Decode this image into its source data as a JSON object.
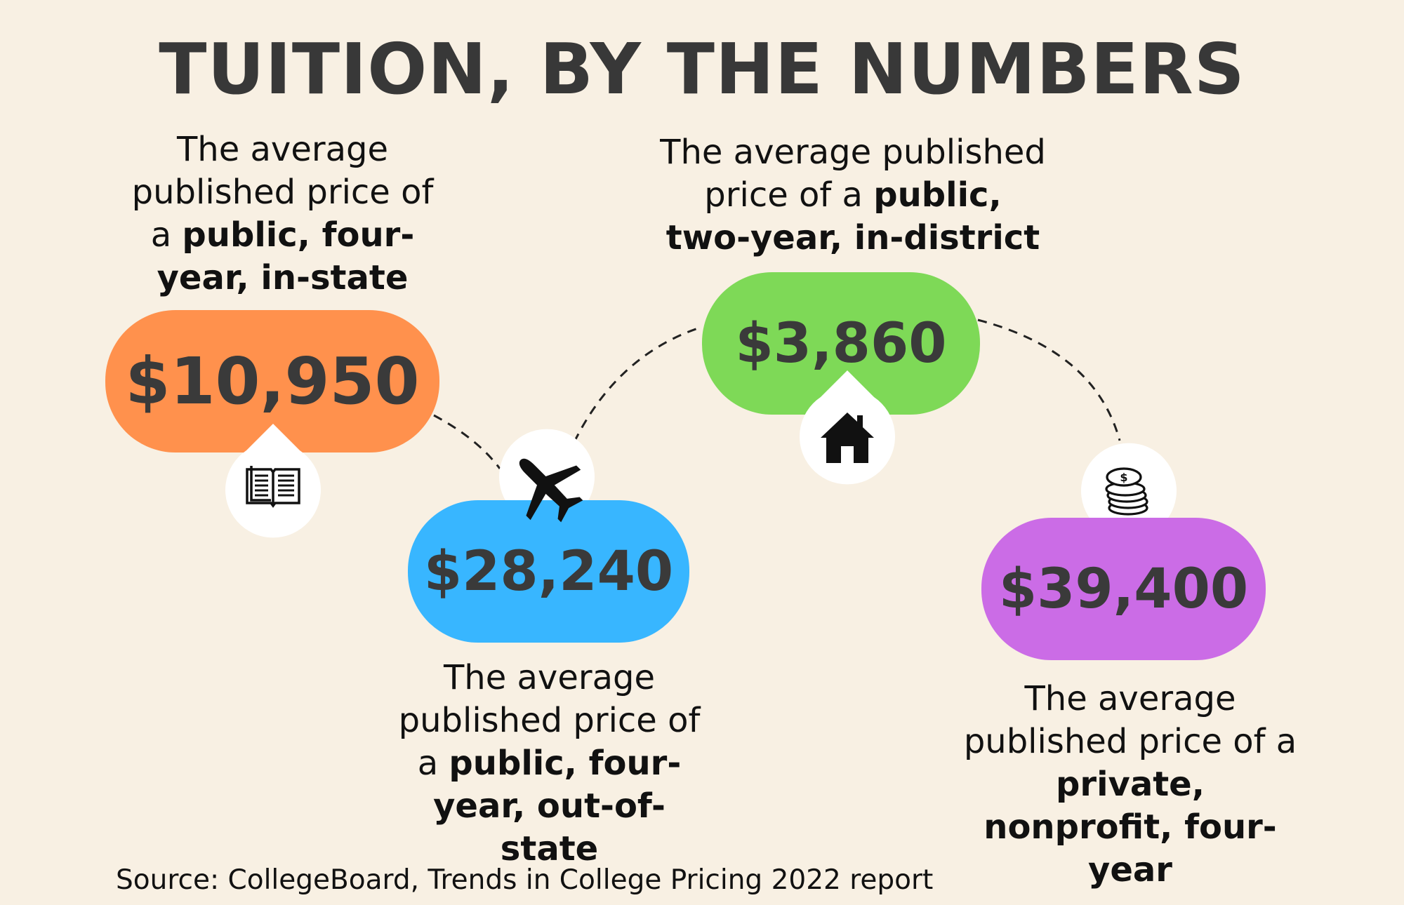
{
  "title": "TUITION, BY THE NUMBERS",
  "items": [
    {
      "amount": "$10,950",
      "desc_plain": "The average published price of a",
      "desc_bold": "public, four-year, in-state",
      "icon": "open-book-icon",
      "color": "#ff914d"
    },
    {
      "amount": "$28,240",
      "desc_plain": "The average published price of a",
      "desc_bold": "public, four-year, out-of-state",
      "icon": "airplane-icon",
      "color": "#38b6ff"
    },
    {
      "amount": "$3,860",
      "desc_plain": "The average published price of a",
      "desc_bold": "public, two-year, in-district",
      "icon": "house-icon",
      "color": "#7ed957"
    },
    {
      "amount": "$39,400",
      "desc_plain": "The average published price of a",
      "desc_bold": "private, nonprofit, four-year",
      "icon": "coin-stack-icon",
      "color": "#cb6ce6"
    }
  ],
  "source": "Source: CollegeBoard, Trends in College Pricing 2022 report"
}
